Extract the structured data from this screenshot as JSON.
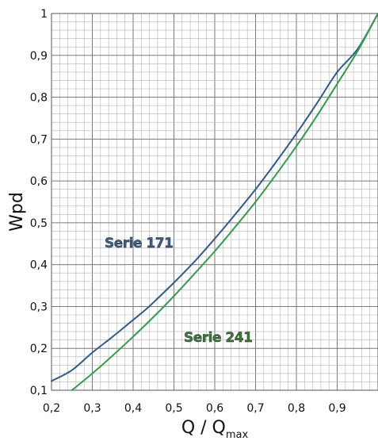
{
  "chart_data": {
    "type": "line",
    "title": "",
    "xlabel": {
      "main": "Q / Q",
      "sub": "max"
    },
    "ylabel": "Wpd",
    "xlim": [
      0.2,
      1.0
    ],
    "ylim": [
      0.1,
      1.0
    ],
    "x_ticks": [
      "0,2",
      "0,3",
      "0,4",
      "0,5",
      "0,6",
      "0,7",
      "0,8",
      "0,9"
    ],
    "y_ticks": [
      "0,1",
      "0,2",
      "0,3",
      "0,4",
      "0,5",
      "0,6",
      "0,7",
      "0,8",
      "0,9",
      "1"
    ],
    "grid": true,
    "series": [
      {
        "name": "Serie 171",
        "color": "#2f5c8c",
        "label_color": "#3a5f8a",
        "x": [
          0.2,
          0.25,
          0.3,
          0.35,
          0.4,
          0.43,
          0.45,
          0.5,
          0.55,
          0.6,
          0.65,
          0.7,
          0.75,
          0.8,
          0.85,
          0.9,
          0.95,
          1.0
        ],
        "y": [
          0.122,
          0.148,
          0.19,
          0.228,
          0.268,
          0.292,
          0.31,
          0.357,
          0.407,
          0.462,
          0.52,
          0.58,
          0.645,
          0.713,
          0.785,
          0.86,
          0.915,
          1.0
        ]
      },
      {
        "name": "Serie 241",
        "color": "#2e9e48",
        "label_color": "#3a7a3a",
        "x": [
          0.25,
          0.3,
          0.35,
          0.4,
          0.45,
          0.5,
          0.55,
          0.6,
          0.65,
          0.7,
          0.75,
          0.8,
          0.85,
          0.9,
          0.95,
          1.0
        ],
        "y": [
          0.1,
          0.14,
          0.183,
          0.228,
          0.275,
          0.325,
          0.378,
          0.432,
          0.49,
          0.55,
          0.615,
          0.683,
          0.755,
          0.832,
          0.91,
          1.0
        ]
      }
    ]
  }
}
